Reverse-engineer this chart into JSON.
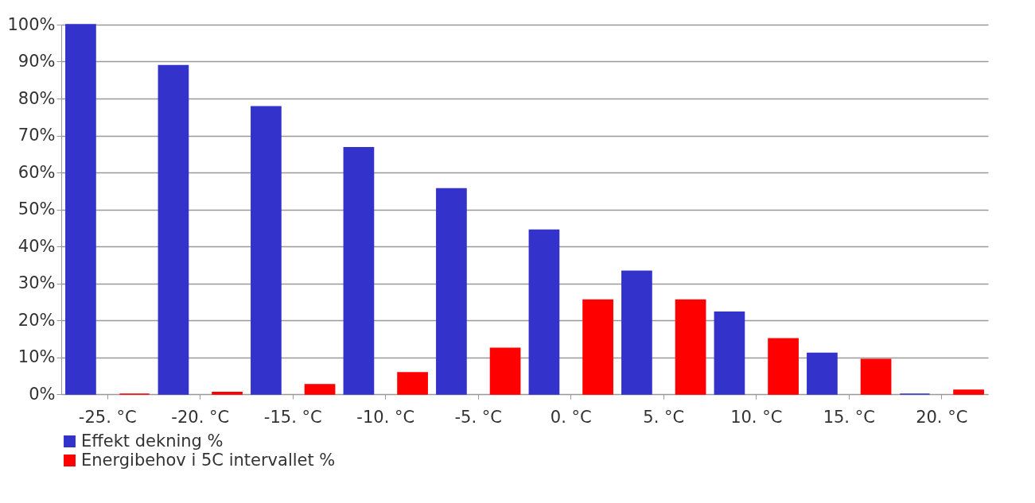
{
  "chart_data": {
    "type": "bar",
    "categories": [
      "-25. °C",
      "-20. °C",
      "-15. °C",
      "-10. °C",
      "-5. °C",
      "0. °C",
      "5. °C",
      "10. °C",
      "15. °C",
      "20. °C"
    ],
    "series": [
      {
        "name": "Effekt dekning %",
        "color": "#3333cc",
        "values": [
          100,
          88.9,
          77.8,
          66.7,
          55.6,
          44.4,
          33.3,
          22.2,
          11.1,
          0
        ]
      },
      {
        "name": "Energibehov i 5C intervallet %",
        "color": "#ff0000",
        "values": [
          0,
          0.5,
          2.6,
          5.8,
          12.4,
          25.5,
          25.5,
          15,
          9.4,
          1.1
        ]
      }
    ],
    "ylim": [
      0,
      100
    ],
    "yticks": [
      {
        "value": 0,
        "label": "0%"
      },
      {
        "value": 10,
        "label": "10%"
      },
      {
        "value": 20,
        "label": "20%"
      },
      {
        "value": 30,
        "label": "30%"
      },
      {
        "value": 40,
        "label": "40%"
      },
      {
        "value": 50,
        "label": "50%"
      },
      {
        "value": 60,
        "label": "60%"
      },
      {
        "value": 70,
        "label": "70%"
      },
      {
        "value": 80,
        "label": "80%"
      },
      {
        "value": 90,
        "label": "90%"
      },
      {
        "value": 100,
        "label": "100%"
      }
    ],
    "grid": "y",
    "legend": "bottom"
  }
}
